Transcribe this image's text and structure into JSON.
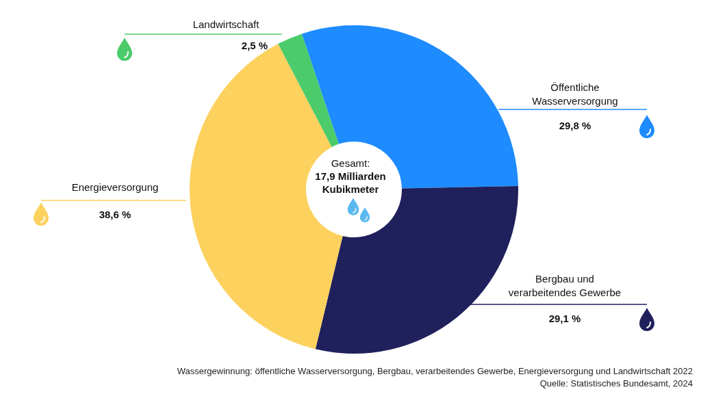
{
  "chart_data": {
    "type": "donut",
    "title": "Gesamt:",
    "subtitle": "17,9 Milliarden Kubikmeter",
    "categories": [
      "Öffentliche Wasserversorgung",
      "Bergbau und verarbeitendes Gewerbe",
      "Energieversorgung",
      "Landwirtschaft"
    ],
    "values": [
      29.8,
      29.1,
      38.6,
      2.5
    ],
    "colors": [
      "#1e8bff",
      "#1f205c",
      "#fdd15e",
      "#4ccb6b"
    ],
    "value_labels": [
      "29,8 %",
      "29,1 %",
      "38,6 %",
      "2,5 %"
    ],
    "annotations": [
      "Wassergewinnung: öffentliche Wasserversorgung, Bergbau, verarbeitendes Gewerbe, Energieversorgung und Landwirtschaft 2022",
      "Quelle: Statistisches Bundesamt, 2024"
    ]
  }
}
